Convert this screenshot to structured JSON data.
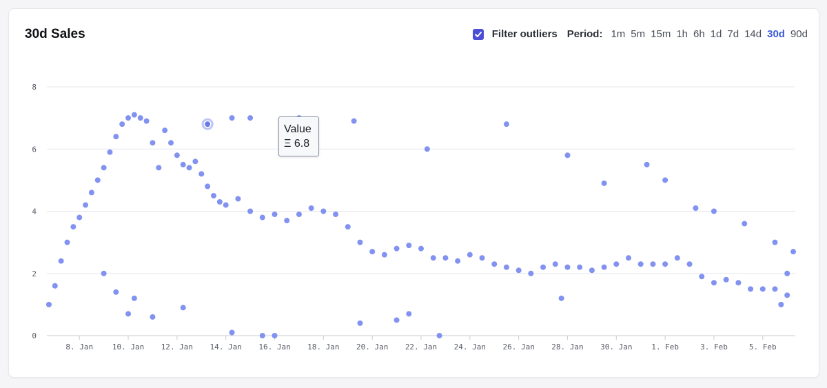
{
  "card": {
    "title": "30d Sales",
    "filter": {
      "label": "Filter outliers",
      "checked": true
    },
    "period": {
      "label": "Period:",
      "options": [
        "1m",
        "5m",
        "15m",
        "1h",
        "6h",
        "1d",
        "7d",
        "14d",
        "30d",
        "90d"
      ],
      "selected": "30d"
    }
  },
  "tooltip": {
    "title": "Value",
    "value": "Ξ 6.8"
  },
  "colors": {
    "points": "#7b8cef",
    "accent": "#3d5bd9",
    "checkbox": "#4b4fd6",
    "grid": "#e6e7eb"
  },
  "chart_data": {
    "type": "scatter",
    "title": "",
    "xlabel": "",
    "ylabel": "",
    "ylim": [
      0,
      8
    ],
    "yticks": [
      0,
      2,
      4,
      6,
      8
    ],
    "xlim": [
      "2022-01-06T16:00",
      "2022-02-06T08:00"
    ],
    "xtick_labels": [
      "8. Jan",
      "10. Jan",
      "12. Jan",
      "14. Jan",
      "16. Jan",
      "18. Jan",
      "20. Jan",
      "22. Jan",
      "24. Jan",
      "26. Jan",
      "28. Jan",
      "30. Jan",
      "1. Feb",
      "3. Feb",
      "5. Feb"
    ],
    "xtick_dates": [
      "2022-01-08",
      "2022-01-10",
      "2022-01-12",
      "2022-01-14",
      "2022-01-16",
      "2022-01-18",
      "2022-01-20",
      "2022-01-22",
      "2022-01-24",
      "2022-01-26",
      "2022-01-28",
      "2022-01-30",
      "2022-02-01",
      "2022-02-03",
      "2022-02-05"
    ],
    "grid": true,
    "series": [
      {
        "name": "",
        "points": [
          [
            "2022-01-06T18:00",
            1.0
          ],
          [
            "2022-01-07T00:00",
            1.6
          ],
          [
            "2022-01-07T06:00",
            2.4
          ],
          [
            "2022-01-07T12:00",
            3.0
          ],
          [
            "2022-01-07T18:00",
            3.5
          ],
          [
            "2022-01-08T00:00",
            3.8
          ],
          [
            "2022-01-08T06:00",
            4.2
          ],
          [
            "2022-01-08T12:00",
            4.6
          ],
          [
            "2022-01-08T18:00",
            5.0
          ],
          [
            "2022-01-09T00:00",
            5.4
          ],
          [
            "2022-01-09T06:00",
            5.9
          ],
          [
            "2022-01-09T12:00",
            6.4
          ],
          [
            "2022-01-09T18:00",
            6.8
          ],
          [
            "2022-01-10T00:00",
            7.0
          ],
          [
            "2022-01-10T06:00",
            7.1
          ],
          [
            "2022-01-10T12:00",
            7.0
          ],
          [
            "2022-01-10T18:00",
            6.9
          ],
          [
            "2022-01-11T00:00",
            6.2
          ],
          [
            "2022-01-11T06:00",
            5.4
          ],
          [
            "2022-01-11T12:00",
            6.6
          ],
          [
            "2022-01-11T18:00",
            6.2
          ],
          [
            "2022-01-12T00:00",
            5.8
          ],
          [
            "2022-01-12T06:00",
            5.5
          ],
          [
            "2022-01-12T12:00",
            5.4
          ],
          [
            "2022-01-12T18:00",
            5.6
          ],
          [
            "2022-01-13T00:00",
            5.2
          ],
          [
            "2022-01-13T06:00",
            4.8
          ],
          [
            "2022-01-13T12:00",
            4.5
          ],
          [
            "2022-01-13T18:00",
            4.3
          ],
          [
            "2022-01-14T00:00",
            4.2
          ],
          [
            "2022-01-14T12:00",
            4.4
          ],
          [
            "2022-01-15T00:00",
            4.0
          ],
          [
            "2022-01-15T12:00",
            3.8
          ],
          [
            "2022-01-16T00:00",
            3.9
          ],
          [
            "2022-01-16T12:00",
            3.7
          ],
          [
            "2022-01-17T00:00",
            3.9
          ],
          [
            "2022-01-17T12:00",
            4.1
          ],
          [
            "2022-01-18T00:00",
            4.0
          ],
          [
            "2022-01-18T12:00",
            3.9
          ],
          [
            "2022-01-19T00:00",
            3.5
          ],
          [
            "2022-01-19T12:00",
            3.0
          ],
          [
            "2022-01-20T00:00",
            2.7
          ],
          [
            "2022-01-20T12:00",
            2.6
          ],
          [
            "2022-01-21T00:00",
            2.8
          ],
          [
            "2022-01-21T12:00",
            2.9
          ],
          [
            "2022-01-22T00:00",
            2.8
          ],
          [
            "2022-01-22T12:00",
            2.5
          ],
          [
            "2022-01-23T00:00",
            2.5
          ],
          [
            "2022-01-23T12:00",
            2.4
          ],
          [
            "2022-01-24T00:00",
            2.6
          ],
          [
            "2022-01-24T12:00",
            2.5
          ],
          [
            "2022-01-25T00:00",
            2.3
          ],
          [
            "2022-01-25T12:00",
            2.2
          ],
          [
            "2022-01-26T00:00",
            2.1
          ],
          [
            "2022-01-26T12:00",
            2.0
          ],
          [
            "2022-01-27T00:00",
            2.2
          ],
          [
            "2022-01-27T12:00",
            2.3
          ],
          [
            "2022-01-28T00:00",
            2.2
          ],
          [
            "2022-01-28T12:00",
            2.2
          ],
          [
            "2022-01-29T00:00",
            2.1
          ],
          [
            "2022-01-29T12:00",
            2.2
          ],
          [
            "2022-01-30T00:00",
            2.3
          ],
          [
            "2022-01-30T12:00",
            2.5
          ],
          [
            "2022-01-31T00:00",
            2.3
          ],
          [
            "2022-01-31T12:00",
            2.3
          ],
          [
            "2022-02-01T00:00",
            2.3
          ],
          [
            "2022-02-01T12:00",
            2.5
          ],
          [
            "2022-02-02T00:00",
            2.3
          ],
          [
            "2022-02-02T12:00",
            1.9
          ],
          [
            "2022-02-03T00:00",
            1.7
          ],
          [
            "2022-02-03T12:00",
            1.8
          ],
          [
            "2022-02-04T00:00",
            1.7
          ],
          [
            "2022-02-04T12:00",
            1.5
          ],
          [
            "2022-02-05T00:00",
            1.5
          ],
          [
            "2022-02-05T12:00",
            1.5
          ],
          [
            "2022-02-06T00:00",
            1.3
          ],
          [
            "2022-01-09T00:00",
            2.0
          ],
          [
            "2022-01-09T12:00",
            1.4
          ],
          [
            "2022-01-10T00:00",
            0.7
          ],
          [
            "2022-01-10T06:00",
            1.2
          ],
          [
            "2022-01-11T00:00",
            0.6
          ],
          [
            "2022-01-12T06:00",
            0.9
          ],
          [
            "2022-01-13T06:00",
            6.8
          ],
          [
            "2022-01-14T06:00",
            0.1
          ],
          [
            "2022-01-14T06:00",
            7.0
          ],
          [
            "2022-01-15T00:00",
            7.0
          ],
          [
            "2022-01-15T12:00",
            0.0
          ],
          [
            "2022-01-16T00:00",
            0.0
          ],
          [
            "2022-01-17T00:00",
            7.0
          ],
          [
            "2022-01-19T12:00",
            0.4
          ],
          [
            "2022-01-19T06:00",
            6.9
          ],
          [
            "2022-01-21T00:00",
            0.5
          ],
          [
            "2022-01-21T12:00",
            0.7
          ],
          [
            "2022-01-22T06:00",
            6.0
          ],
          [
            "2022-01-22T18:00",
            0.0
          ],
          [
            "2022-01-25T12:00",
            6.8
          ],
          [
            "2022-01-27T18:00",
            1.2
          ],
          [
            "2022-01-28T00:00",
            5.8
          ],
          [
            "2022-01-29T12:00",
            4.9
          ],
          [
            "2022-01-31T06:00",
            5.5
          ],
          [
            "2022-02-01T00:00",
            5.0
          ],
          [
            "2022-02-02T06:00",
            4.1
          ],
          [
            "2022-02-03T00:00",
            4.0
          ],
          [
            "2022-02-04T06:00",
            3.6
          ],
          [
            "2022-02-05T12:00",
            3.0
          ],
          [
            "2022-02-06T06:00",
            2.7
          ],
          [
            "2022-02-05T18:00",
            1.0
          ],
          [
            "2022-02-06T00:00",
            2.0
          ]
        ]
      }
    ],
    "highlight": {
      "x": "2022-01-13T06:00",
      "y": 6.8
    }
  }
}
